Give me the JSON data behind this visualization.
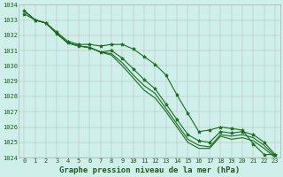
{
  "xlabel": "Graphe pression niveau de la mer (hPa)",
  "x": [
    0,
    1,
    2,
    3,
    4,
    5,
    6,
    7,
    8,
    9,
    10,
    11,
    12,
    13,
    14,
    15,
    16,
    17,
    18,
    19,
    20,
    21,
    22,
    23
  ],
  "series": [
    [
      1033.6,
      1033.0,
      1032.8,
      1032.1,
      1031.5,
      1031.3,
      1031.2,
      1030.9,
      1031.0,
      1030.5,
      1029.8,
      1029.1,
      1028.5,
      1027.5,
      1026.5,
      1025.5,
      1025.1,
      1025.0,
      1025.7,
      1025.6,
      1025.7,
      1025.5,
      1025.0,
      1024.2
    ],
    [
      1033.6,
      1033.0,
      1032.8,
      1032.1,
      1031.5,
      1031.3,
      1031.2,
      1030.9,
      1030.8,
      1030.2,
      1029.4,
      1028.7,
      1028.2,
      1027.2,
      1026.2,
      1025.2,
      1024.8,
      1024.7,
      1025.5,
      1025.4,
      1025.5,
      1025.3,
      1024.8,
      1024.1
    ],
    [
      1033.6,
      1033.0,
      1032.8,
      1032.1,
      1031.5,
      1031.3,
      1031.2,
      1030.9,
      1030.7,
      1030.0,
      1029.2,
      1028.4,
      1027.9,
      1027.0,
      1026.0,
      1025.0,
      1024.6,
      1024.6,
      1025.4,
      1025.2,
      1025.3,
      1025.1,
      1024.6,
      1024.0
    ],
    [
      1033.4,
      1033.0,
      1032.8,
      1032.2,
      1031.6,
      1031.4,
      1031.4,
      1031.3,
      1031.4,
      1031.4,
      1031.1,
      1030.6,
      1030.1,
      1029.4,
      1028.1,
      1026.9,
      1025.7,
      1025.8,
      1026.0,
      1025.9,
      1025.8,
      1024.9,
      1024.2,
      1024.2
    ]
  ],
  "colors": [
    "#1a6b1a",
    "#1a6b1a",
    "#1a6b1a",
    "#1a6b1a"
  ],
  "marker": "*",
  "marker_series": [
    0,
    3
  ],
  "bg_color": "#cff0ea",
  "grid_color": "#b0b0b0",
  "ylim_min": 1024,
  "ylim_max": 1034,
  "ytick_step": 1,
  "line_width": 0.8,
  "font_color": "#1a5c1a",
  "label_fontsize": 6.5,
  "tick_fontsize": 5.0,
  "marker_size": 3.0
}
